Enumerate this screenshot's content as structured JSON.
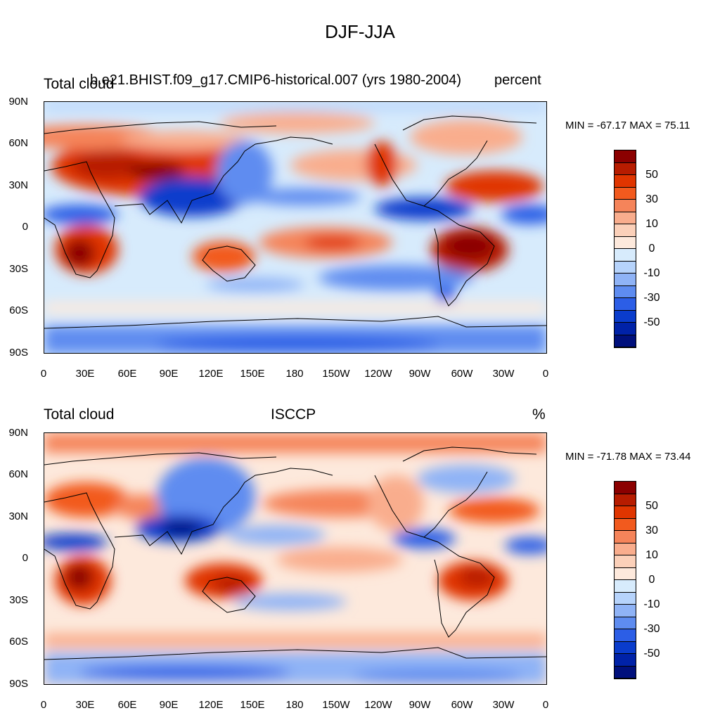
{
  "figure": {
    "title": "DJF-JJA",
    "lat_labels": [
      "90N",
      "60N",
      "30N",
      "0",
      "30S",
      "60S",
      "90S"
    ],
    "lon_labels": [
      "0",
      "30E",
      "60E",
      "90E",
      "120E",
      "150E",
      "180",
      "150W",
      "120W",
      "90W",
      "60W",
      "30W",
      "0"
    ],
    "colorbar": {
      "labels": [
        "50",
        "30",
        "10",
        "0",
        "-10",
        "-30",
        "-50"
      ],
      "colors": [
        "#8b0000",
        "#b71c00",
        "#e03500",
        "#f25a1e",
        "#f5845a",
        "#f9ad8d",
        "#fbd0b9",
        "#fde9dc",
        "#d7ebfc",
        "#b6d3fb",
        "#8fb3f6",
        "#5e8cf0",
        "#2c5ee6",
        "#0a3ccc",
        "#0022a8",
        "#00107c"
      ]
    }
  },
  "panels": [
    {
      "left_label": "Total cloud",
      "center_label": "b.e21.BHIST.f09_g17.CMIP6-historical.007 (yrs 1980-2004)",
      "right_label": "percent",
      "minmax": "MIN = -67.17 MAX =  75.11"
    },
    {
      "left_label": "Total cloud",
      "center_label": "ISCCP",
      "right_label": "%",
      "minmax": "MIN = -71.78 MAX =  73.44"
    }
  ]
}
